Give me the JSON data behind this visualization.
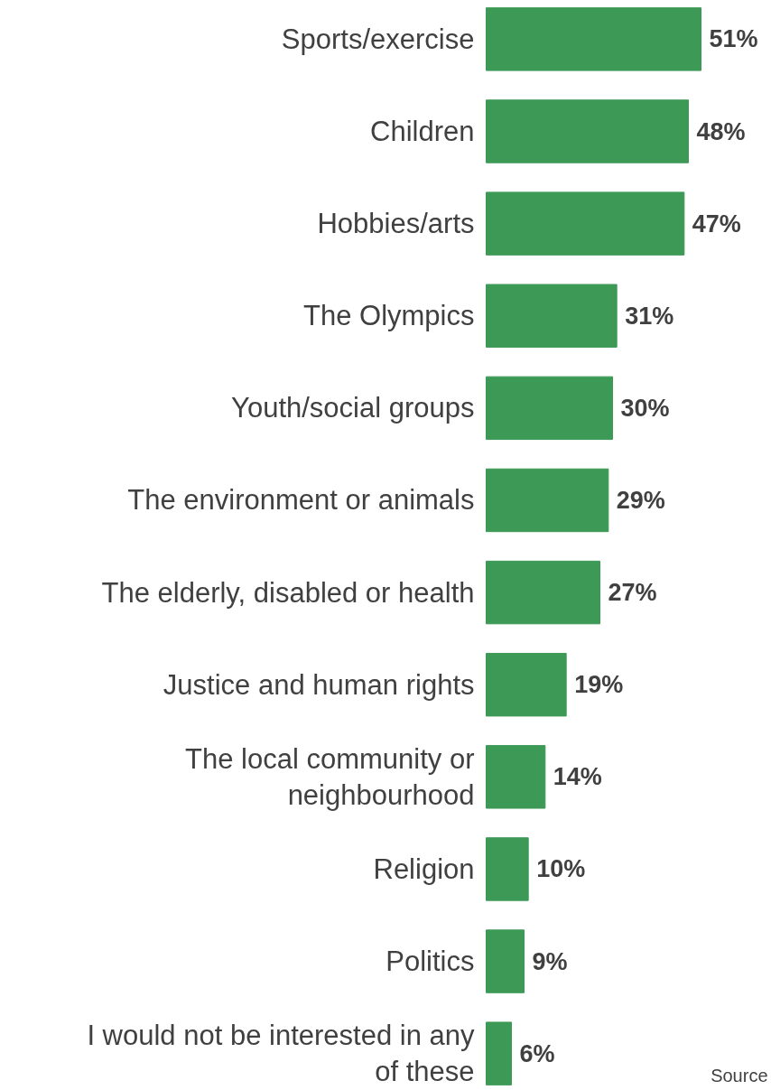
{
  "chart_data": {
    "type": "bar",
    "orientation": "horizontal",
    "data_labels": true,
    "value_labels": [
      "51%",
      "48%",
      "47%",
      "31%",
      "30%",
      "29%",
      "27%",
      "19%",
      "14%",
      "10%",
      "9%",
      "6%"
    ],
    "categories": [
      "Sports/exercise",
      "Children",
      "Hobbies/arts",
      "The Olympics",
      "Youth/social groups",
      "The environment or animals",
      "The elderly, disabled or health",
      "Justice and human rights",
      "The local community or\nneighbourhood",
      "Religion",
      "Politics",
      "I would not be interested in any\nof these"
    ],
    "values": [
      51,
      48,
      47,
      31,
      30,
      29,
      27,
      19,
      14,
      10,
      9,
      6
    ],
    "color": "#3d9956",
    "grid": false,
    "annotations": [
      "Source"
    ]
  }
}
